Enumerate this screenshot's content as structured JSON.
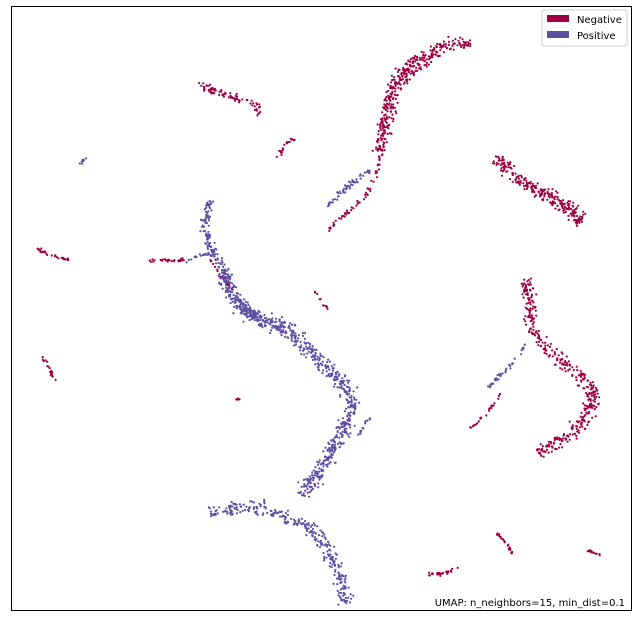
{
  "chart_data": {
    "type": "scatter",
    "xlim": [
      0,
      100
    ],
    "ylim": [
      0,
      100
    ],
    "grid": false,
    "legend_placement": "top-right",
    "legend": [
      {
        "label": "Negative",
        "color": "#9e0142"
      },
      {
        "label": "Positive",
        "color": "#5e4fa2"
      }
    ],
    "annotation": "UMAP: n_neighbors=15, min_dist=0.1",
    "clusters": [
      {
        "series": "Negative",
        "polyline": [
          [
            59,
            76
          ],
          [
            62,
            87
          ],
          [
            65,
            90
          ],
          [
            70,
            94
          ],
          [
            74,
            94
          ]
        ],
        "width": 2.2,
        "n": 260
      },
      {
        "series": "Negative",
        "polyline": [
          [
            60,
            80
          ],
          [
            61,
            86
          ],
          [
            64,
            91
          ],
          [
            67,
            92
          ]
        ],
        "width": 1.6,
        "n": 90
      },
      {
        "series": "Negative",
        "polyline": [
          [
            30,
            87
          ],
          [
            33,
            86
          ],
          [
            36,
            85
          ],
          [
            39,
            84
          ],
          [
            40,
            82
          ]
        ],
        "width": 1.4,
        "n": 80
      },
      {
        "series": "Negative",
        "polyline": [
          [
            43,
            75
          ],
          [
            44,
            77
          ],
          [
            45,
            78
          ],
          [
            46,
            78
          ]
        ],
        "width": 0.6,
        "n": 20
      },
      {
        "series": "Negative",
        "polyline": [
          [
            60,
            81
          ],
          [
            60,
            77
          ],
          [
            59,
            73
          ],
          [
            57,
            68
          ],
          [
            53,
            65
          ],
          [
            51,
            63
          ]
        ],
        "width": 0.9,
        "n": 80
      },
      {
        "series": "Negative",
        "polyline": [
          [
            78,
            75
          ],
          [
            80,
            73
          ],
          [
            84,
            70
          ],
          [
            88,
            68
          ],
          [
            91,
            66
          ],
          [
            92,
            64
          ]
        ],
        "width": 2.4,
        "n": 260
      },
      {
        "series": "Negative",
        "polyline": [
          [
            83,
            55
          ],
          [
            84,
            51
          ],
          [
            84,
            47
          ],
          [
            86,
            44
          ],
          [
            89,
            41
          ],
          [
            92,
            39
          ],
          [
            94,
            36
          ],
          [
            93,
            32
          ],
          [
            90,
            29
          ],
          [
            87,
            27
          ],
          [
            85,
            26
          ]
        ],
        "width": 2.4,
        "n": 380
      },
      {
        "series": "Negative",
        "polyline": [
          [
            4,
            60
          ],
          [
            6,
            59
          ],
          [
            9,
            58
          ]
        ],
        "width": 0.5,
        "n": 30
      },
      {
        "series": "Negative",
        "polyline": [
          [
            22,
            58
          ],
          [
            25,
            58
          ],
          [
            28,
            58
          ]
        ],
        "width": 0.4,
        "n": 30
      },
      {
        "series": "Negative",
        "polyline": [
          [
            5,
            42
          ],
          [
            6,
            40
          ],
          [
            7,
            38
          ]
        ],
        "width": 0.4,
        "n": 20
      },
      {
        "series": "Negative",
        "polyline": [
          [
            79,
            36
          ],
          [
            77,
            33
          ],
          [
            74,
            30
          ]
        ],
        "width": 0.4,
        "n": 25
      },
      {
        "series": "Negative",
        "polyline": [
          [
            78,
            13
          ],
          [
            80,
            11
          ],
          [
            81,
            9
          ]
        ],
        "width": 0.4,
        "n": 25
      },
      {
        "series": "Negative",
        "polyline": [
          [
            67,
            6
          ],
          [
            70,
            6
          ],
          [
            72,
            7
          ]
        ],
        "width": 0.5,
        "n": 25
      },
      {
        "series": "Negative",
        "polyline": [
          [
            93,
            10
          ],
          [
            95,
            9
          ]
        ],
        "width": 0.4,
        "n": 15
      },
      {
        "series": "Negative",
        "polyline": [
          [
            49,
            53
          ],
          [
            50,
            51
          ],
          [
            51,
            50
          ]
        ],
        "width": 0.3,
        "n": 12
      },
      {
        "series": "Negative",
        "polyline": [
          [
            36,
            35
          ],
          [
            37,
            35
          ]
        ],
        "width": 0.3,
        "n": 6
      },
      {
        "series": "Negative",
        "polyline": [
          [
            32,
            58
          ],
          [
            34,
            55
          ],
          [
            36,
            53
          ]
        ],
        "width": 0.6,
        "n": 25
      },
      {
        "series": "Positive",
        "polyline": [
          [
            51,
            67
          ],
          [
            53,
            69
          ],
          [
            55,
            71
          ],
          [
            58,
            73
          ]
        ],
        "width": 0.9,
        "n": 60
      },
      {
        "series": "Positive",
        "polyline": [
          [
            32,
            68
          ],
          [
            31,
            64
          ],
          [
            32,
            60
          ],
          [
            34,
            57
          ],
          [
            35,
            55
          ]
        ],
        "width": 1.5,
        "n": 130
      },
      {
        "series": "Positive",
        "polyline": [
          [
            28,
            58
          ],
          [
            31,
            59
          ],
          [
            32,
            59
          ]
        ],
        "width": 0.5,
        "n": 20
      },
      {
        "series": "Positive",
        "polyline": [
          [
            34,
            56
          ],
          [
            36,
            51
          ],
          [
            40,
            48
          ],
          [
            44,
            47
          ],
          [
            47,
            44
          ],
          [
            50,
            41
          ],
          [
            52,
            39
          ],
          [
            54,
            37
          ],
          [
            55,
            33
          ],
          [
            53,
            29
          ],
          [
            51,
            25
          ],
          [
            49,
            22
          ],
          [
            47,
            19
          ]
        ],
        "width": 2.4,
        "n": 700
      },
      {
        "series": "Positive",
        "polyline": [
          [
            36,
            52
          ],
          [
            38,
            50
          ],
          [
            40,
            48
          ]
        ],
        "width": 1.6,
        "n": 80
      },
      {
        "series": "Positive",
        "polyline": [
          [
            32,
            16
          ],
          [
            36,
            17
          ],
          [
            41,
            17
          ],
          [
            45,
            15
          ],
          [
            49,
            13
          ],
          [
            51,
            10
          ],
          [
            53,
            6
          ],
          [
            54,
            1
          ]
        ],
        "width": 2.2,
        "n": 300
      },
      {
        "series": "Positive",
        "polyline": [
          [
            11,
            74
          ],
          [
            12,
            75
          ]
        ],
        "width": 0.3,
        "n": 10
      },
      {
        "series": "Positive",
        "polyline": [
          [
            56,
            29
          ],
          [
            57,
            31
          ],
          [
            58,
            32
          ]
        ],
        "width": 0.4,
        "n": 15
      },
      {
        "series": "Positive",
        "polyline": [
          [
            77,
            37
          ],
          [
            79,
            39
          ],
          [
            81,
            41
          ],
          [
            83,
            44
          ]
        ],
        "width": 0.5,
        "n": 40
      }
    ]
  }
}
